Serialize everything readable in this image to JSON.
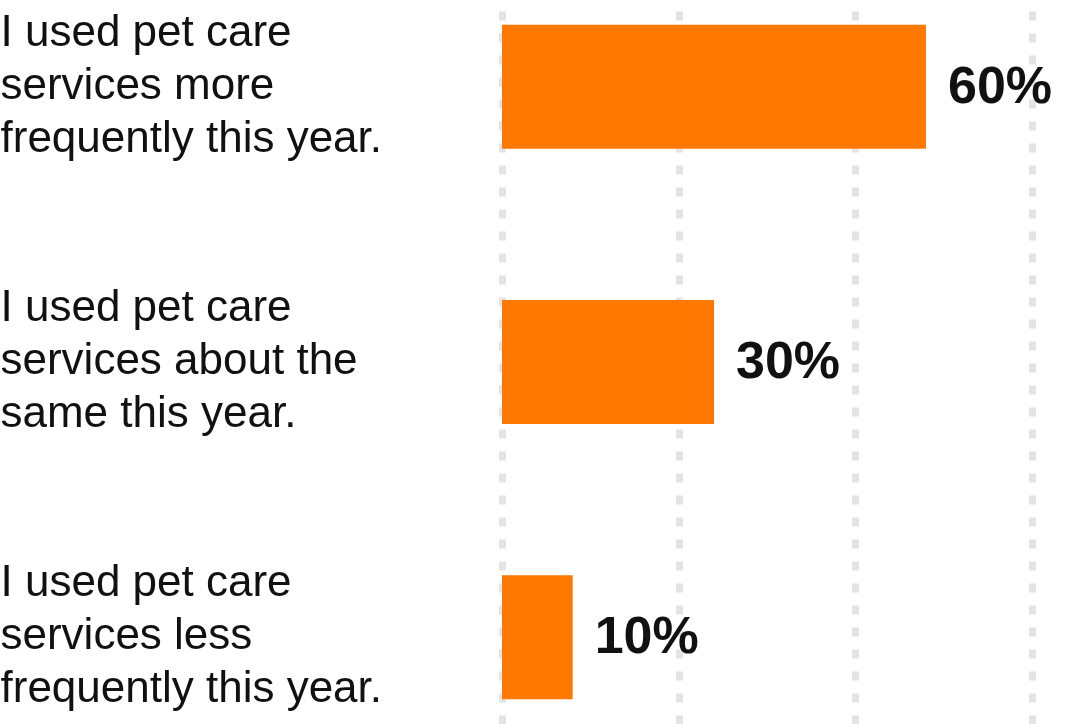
{
  "chart_data": {
    "type": "bar",
    "orientation": "horizontal",
    "categories": [
      "I used pet care services more frequently this year.",
      "I used pet care services about the same this year.",
      "I used pet care services less frequently this year."
    ],
    "values": [
      60,
      30,
      10
    ],
    "color": "#ff7900",
    "value_labels": [
      "60%",
      "30%",
      "10%"
    ],
    "xlim": [
      0,
      75
    ],
    "xticks": [
      {
        "value": 0,
        "label": null
      },
      {
        "value": 25,
        "label": null
      },
      {
        "value": 50,
        "label": null
      },
      {
        "value": 75,
        "label": null
      }
    ],
    "grid": "x",
    "tick_labels": "y"
  }
}
